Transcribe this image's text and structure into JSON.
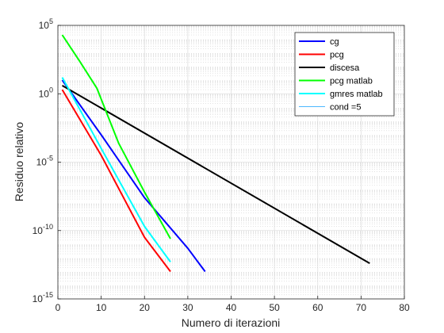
{
  "chart_data": {
    "type": "line",
    "xlabel": "Numero di iterazioni",
    "ylabel": "Residuo relativo",
    "xlim": [
      0,
      80
    ],
    "ylim_exponents": [
      -15,
      5
    ],
    "yscale": "log",
    "grid": "major and minor",
    "legend_position": "top-right",
    "x_ticks": [
      "0",
      "10",
      "20",
      "30",
      "40",
      "50",
      "60",
      "70",
      "80"
    ],
    "y_ticks": [
      {
        "base": "10",
        "exp": "-15"
      },
      {
        "base": "10",
        "exp": "-10"
      },
      {
        "base": "10",
        "exp": "-5"
      },
      {
        "base": "10",
        "exp": "0"
      },
      {
        "base": "10",
        "exp": "5"
      }
    ],
    "series": [
      {
        "name": "cg",
        "color": "#0000ff",
        "width": 2,
        "points": [
          [
            1,
            1.0
          ],
          [
            10,
            -3.0
          ],
          [
            20,
            -7.6
          ],
          [
            30,
            -11.3
          ],
          [
            34,
            -13.0
          ]
        ]
      },
      {
        "name": "pcg",
        "color": "#ff0000",
        "width": 2,
        "points": [
          [
            1,
            0.3
          ],
          [
            10,
            -4.5
          ],
          [
            20,
            -10.5
          ],
          [
            26,
            -13.0
          ]
        ]
      },
      {
        "name": "discesa",
        "color": "#000000",
        "width": 2,
        "points": [
          [
            1,
            0.6
          ],
          [
            72,
            -12.4
          ]
        ]
      },
      {
        "name": "pcg matlab",
        "color": "#00ff00",
        "width": 2,
        "points": [
          [
            1,
            4.3
          ],
          [
            5,
            2.4
          ],
          [
            9,
            0.4
          ],
          [
            14,
            -3.6
          ],
          [
            20,
            -7.2
          ],
          [
            26,
            -10.6
          ]
        ]
      },
      {
        "name": "gmres matlab",
        "color": "#00ffff",
        "width": 2,
        "points": [
          [
            1,
            1.2
          ],
          [
            10,
            -4.0
          ],
          [
            20,
            -9.7
          ],
          [
            26,
            -12.3
          ]
        ]
      },
      {
        "name": "cond =5",
        "color": "#4db8ff",
        "width": 1,
        "points": []
      }
    ]
  }
}
